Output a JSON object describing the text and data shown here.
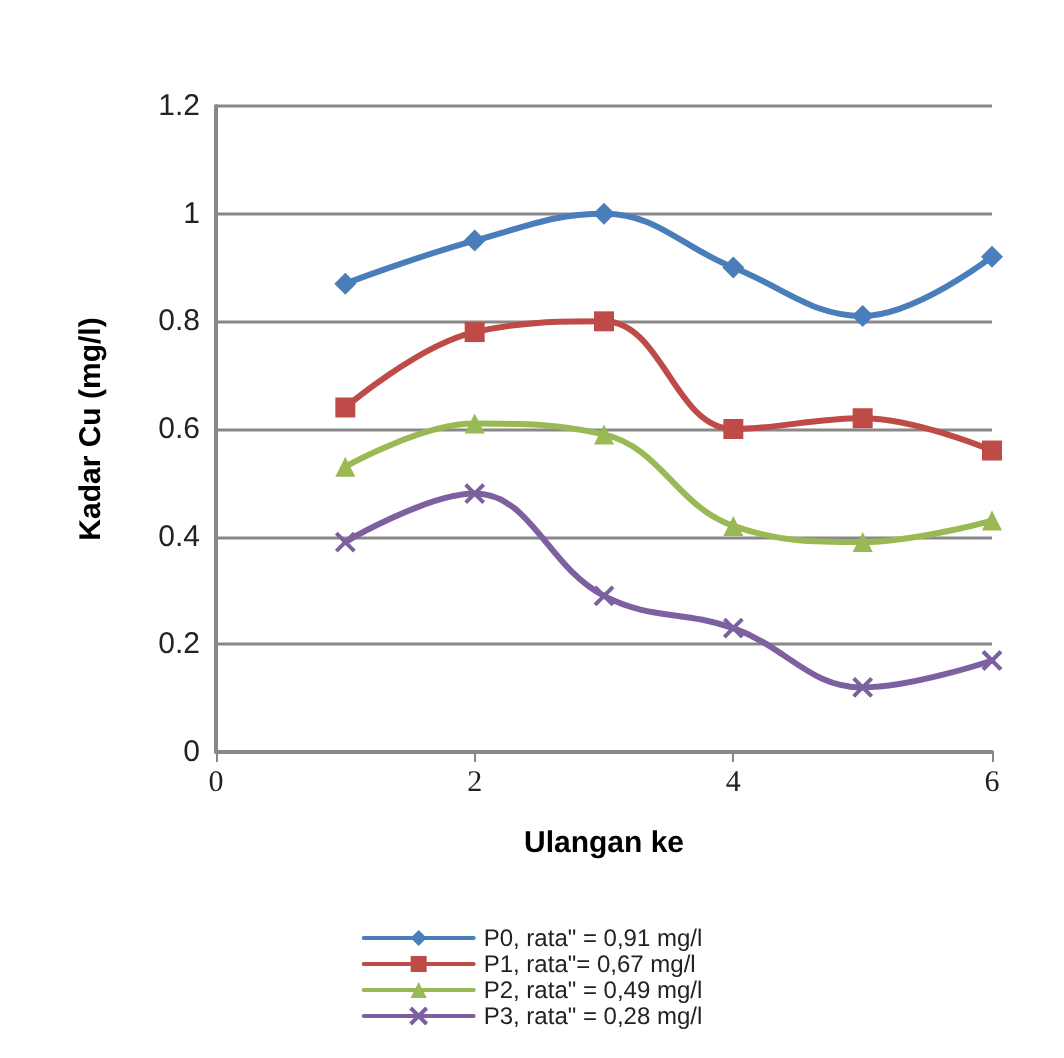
{
  "chart_data": {
    "type": "line",
    "xlabel": "Ulangan ke",
    "ylabel": "Kadar Cu (mg/l)",
    "x": [
      1,
      2,
      3,
      4,
      5,
      6
    ],
    "series": [
      {
        "name": "P0, rata\" = 0,91 mg/l",
        "color": "#4a7ebb",
        "marker": "diamond",
        "values": [
          0.87,
          0.95,
          1.0,
          0.9,
          0.81,
          0.92
        ]
      },
      {
        "name": "P1, rata\"= 0,67 mg/l",
        "color": "#be4b48",
        "marker": "square",
        "values": [
          0.64,
          0.78,
          0.8,
          0.6,
          0.62,
          0.56
        ]
      },
      {
        "name": "P2, rata\" = 0,49 mg/l",
        "color": "#98b954",
        "marker": "triangle",
        "values": [
          0.53,
          0.61,
          0.59,
          0.42,
          0.39,
          0.43
        ]
      },
      {
        "name": "P3, rata\" = 0,28 mg/l",
        "color": "#7d60a0",
        "marker": "cross",
        "values": [
          0.39,
          0.48,
          0.29,
          0.23,
          0.12,
          0.17
        ]
      }
    ],
    "xlim": [
      0,
      6
    ],
    "xticks": [
      0,
      2,
      4,
      6
    ],
    "ylim": [
      0,
      1.2
    ],
    "yticks": [
      0,
      0.2,
      0.4,
      0.6,
      0.8,
      1,
      1.2
    ],
    "grid": "y",
    "legend": "bottom",
    "line_style": "solid"
  }
}
